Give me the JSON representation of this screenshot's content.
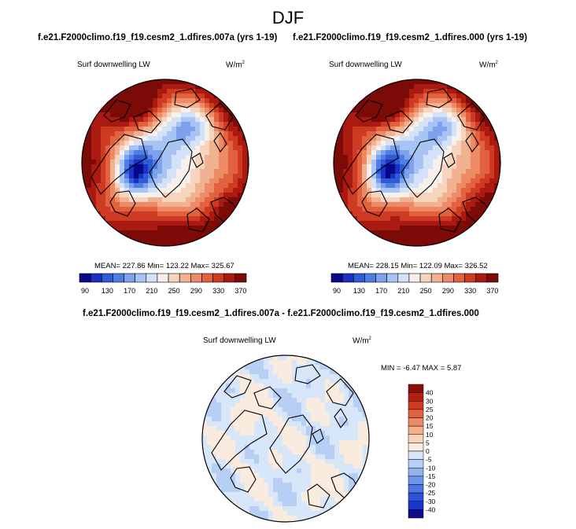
{
  "title": "DJF",
  "colors": {
    "abs_scale": [
      "#08088c",
      "#1a31c2",
      "#2e5cd6",
      "#4f7de6",
      "#7ea1ee",
      "#a8c4f4",
      "#d2e2f9",
      "#f8f0ea",
      "#f7d4bd",
      "#f2b190",
      "#ec8b66",
      "#e2613e",
      "#cf3a22",
      "#aa1a10",
      "#7c0a06"
    ],
    "diff_scale": [
      "#0c0c8c",
      "#1a33c8",
      "#2c53d8",
      "#4b76e4",
      "#6f96ea",
      "#93b3f0",
      "#b7cff4",
      "#d8e6f9",
      "#f9ebdd",
      "#f7d2b7",
      "#f2b08e",
      "#eb8a63",
      "#e2623d",
      "#cf3a22",
      "#b3200f",
      "#8c0d05"
    ],
    "coast": "#000000"
  },
  "chart_data": [
    {
      "type": "heatmap",
      "projection": "north-polar-stereographic",
      "run": "f.e21.F2000climo.f19_f19.cesm2_1.dfires.007a (yrs 1-19)",
      "title": "Surf downwelling LW",
      "units": "W/m",
      "units_exp": "2",
      "stats_text": "MEAN= 227.86  Min= 123.22  Max= 325.67",
      "stats": {
        "mean": 227.86,
        "min": 123.22,
        "max": 325.67
      },
      "colorbar": {
        "orientation": "horizontal",
        "levels": [
          90,
          110,
          130,
          150,
          170,
          190,
          210,
          230,
          250,
          270,
          290,
          310,
          330,
          350,
          370
        ],
        "tick_labels": [
          "90",
          "130",
          "170",
          "210",
          "250",
          "290",
          "330",
          "370"
        ]
      }
    },
    {
      "type": "heatmap",
      "projection": "north-polar-stereographic",
      "run": "f.e21.F2000climo.f19_f19.cesm2_1.dfires.000 (yrs 1-19)",
      "title": "Surf downwelling LW",
      "units": "W/m",
      "units_exp": "2",
      "stats_text": "MEAN= 228.15  Min= 122.09  Max= 326.52",
      "stats": {
        "mean": 228.15,
        "min": 122.09,
        "max": 326.52
      },
      "colorbar": {
        "orientation": "horizontal",
        "levels": [
          90,
          110,
          130,
          150,
          170,
          190,
          210,
          230,
          250,
          270,
          290,
          310,
          330,
          350,
          370
        ],
        "tick_labels": [
          "90",
          "130",
          "170",
          "210",
          "250",
          "290",
          "330",
          "370"
        ]
      }
    },
    {
      "type": "heatmap",
      "projection": "north-polar-stereographic",
      "run": "f.e21.F2000climo.f19_f19.cesm2_1.dfires.007a - f.e21.F2000climo.f19_f19.cesm2_1.dfires.000",
      "title": "Surf downwelling LW",
      "units": "W/m",
      "units_exp": "2",
      "stats_text": "MIN =  -6.47 MAX =   5.87",
      "stats": {
        "min": -6.47,
        "max": 5.87
      },
      "colorbar": {
        "orientation": "vertical",
        "levels": [
          -40,
          -30,
          -25,
          -20,
          -15,
          -10,
          -5,
          0,
          5,
          10,
          15,
          20,
          25,
          30,
          40
        ],
        "tick_labels": [
          "40",
          "30",
          "25",
          "20",
          "15",
          "10",
          "5",
          "0",
          "-5",
          "-10",
          "-15",
          "-20",
          "-25",
          "-30",
          "-40"
        ]
      }
    }
  ]
}
